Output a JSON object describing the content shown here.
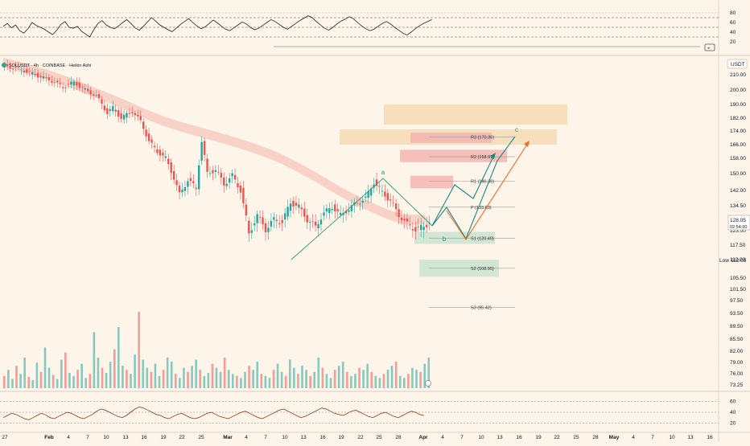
{
  "header": {
    "symbol_line": "SOLUSDT · 4h · COINBASE · Heikin Ashi"
  },
  "currency_badge": "USDT",
  "chart_data": [
    {
      "type": "line",
      "title": "",
      "note": "RSI panel (top)",
      "yticks": [
        80,
        60,
        40,
        20
      ],
      "ylim": [
        0,
        100
      ],
      "levels": [
        70,
        50,
        30
      ],
      "series": [
        {
          "values": [
            52,
            58,
            49,
            55,
            43,
            38,
            47,
            60,
            54,
            50,
            46,
            40,
            35,
            44,
            56,
            62,
            50,
            48,
            52,
            42,
            36,
            30,
            45,
            58,
            64,
            55,
            50,
            47,
            53,
            60,
            66,
            58,
            49,
            44,
            52,
            61,
            70,
            63,
            55,
            50,
            45,
            41,
            48,
            56,
            62,
            68,
            60,
            53,
            47,
            51,
            58,
            65,
            59,
            52,
            46,
            43,
            49,
            55,
            61,
            57,
            50,
            45,
            48,
            54,
            60,
            66,
            62,
            56,
            50,
            46,
            52,
            58,
            64,
            69,
            74,
            70,
            62,
            55,
            48,
            44,
            50,
            57,
            63,
            67,
            72,
            68,
            60,
            53,
            47,
            43,
            46,
            52,
            58,
            62,
            57,
            50,
            44,
            38,
            34,
            40,
            47,
            53,
            58,
            62,
            66
          ]
        }
      ]
    },
    {
      "type": "candlestick",
      "title": "",
      "note": "Main SOLUSDT 4h price panel",
      "yticks": [
        "210.00",
        "200.00",
        "190.00",
        "182.00",
        "174.00",
        "166.00",
        "158.00",
        "150.00",
        "142.00",
        "134.50",
        "128.05",
        "123.50",
        "117.50",
        "112.03",
        "105.50",
        "101.50",
        "97.50",
        "93.50",
        "89.50",
        "85.50",
        "82.00",
        "79.00",
        "76.00",
        "73.25"
      ],
      "ylim": [
        70,
        222
      ],
      "xticks": [
        "27",
        "Feb",
        "4",
        "7",
        "10",
        "13",
        "16",
        "19",
        "22",
        "25",
        "Mar",
        "4",
        "7",
        "10",
        "13",
        "16",
        "19",
        "22",
        "25",
        "28",
        "Apr",
        "4",
        "7",
        "10",
        "13",
        "16",
        "19",
        "22",
        "25",
        "28",
        "May",
        "4",
        "7",
        "10",
        "13",
        "16"
      ],
      "last_price": {
        "value": "128.05",
        "countdown": "02:54:30"
      },
      "low_label": {
        "text": "Low",
        "value": "112.03"
      },
      "price_path": [
        [
          0,
          216
        ],
        [
          6,
          214
        ],
        [
          12,
          210
        ],
        [
          18,
          206
        ],
        [
          22,
          202
        ],
        [
          26,
          205
        ],
        [
          30,
          200
        ],
        [
          34,
          196
        ],
        [
          38,
          185
        ],
        [
          40,
          188
        ],
        [
          43,
          182
        ],
        [
          47,
          186
        ],
        [
          50,
          180
        ],
        [
          53,
          168
        ],
        [
          56,
          162
        ],
        [
          59,
          158
        ],
        [
          62,
          148
        ],
        [
          64,
          140
        ],
        [
          67,
          147
        ],
        [
          70,
          143
        ],
        [
          72,
          168
        ],
        [
          74,
          150
        ],
        [
          77,
          152
        ],
        [
          80,
          145
        ],
        [
          83,
          149
        ],
        [
          86,
          142
        ],
        [
          89,
          122
        ],
        [
          92,
          130
        ],
        [
          95,
          124
        ],
        [
          98,
          128
        ],
        [
          101,
          127
        ],
        [
          104,
          136
        ],
        [
          107,
          134
        ],
        [
          110,
          128
        ],
        [
          113,
          125
        ],
        [
          116,
          131
        ],
        [
          119,
          134
        ],
        [
          122,
          130
        ],
        [
          125,
          133
        ],
        [
          128,
          136
        ],
        [
          131,
          138
        ],
        [
          134,
          146
        ],
        [
          137,
          141
        ],
        [
          140,
          137
        ],
        [
          143,
          130
        ],
        [
          146,
          126
        ],
        [
          149,
          124
        ],
        [
          152,
          125
        ],
        [
          154,
          127
        ]
      ],
      "elliott_labels": [
        "a",
        "b",
        "c"
      ],
      "pivot_levels": [
        {
          "label": "R3 (170.36)",
          "value": 170.36
        },
        {
          "label": "R2 (158.91)",
          "value": 158.91
        },
        {
          "label": "R1 (146.38)",
          "value": 146.38
        },
        {
          "label": "P (133.83)",
          "value": 133.83
        },
        {
          "label": "S1 (120.40)",
          "value": 120.4
        },
        {
          "label": "S2 (108.95)",
          "value": 108.95
        },
        {
          "label": "S3 (95.42)",
          "value": 95.42
        }
      ],
      "zones": [
        {
          "kind": "target",
          "from": 178,
          "to": 190,
          "color": "#f6dbb4"
        },
        {
          "kind": "target",
          "from": 166,
          "to": 175,
          "color": "#f6dbb4"
        },
        {
          "kind": "resistance",
          "from": 167,
          "to": 173,
          "color": "#f5b5b0"
        },
        {
          "kind": "resistance",
          "from": 156,
          "to": 163,
          "color": "#f5b5b0"
        },
        {
          "kind": "resistance",
          "from": 143,
          "to": 149,
          "color": "#f5b5b0"
        },
        {
          "kind": "support",
          "from": 118,
          "to": 123,
          "color": "#c9e3cf"
        },
        {
          "kind": "support",
          "from": 106,
          "to": 112,
          "color": "#c9e3cf"
        }
      ],
      "colors": {
        "up": "#26a69a",
        "down": "#ef5350",
        "wave": "#2e9b7b",
        "path_orange": "#f26b21",
        "path_teal": "#1b8a84"
      }
    },
    {
      "type": "bar",
      "title": "",
      "note": "Volume histogram",
      "values": [
        12,
        18,
        9,
        22,
        14,
        30,
        11,
        8,
        25,
        16,
        40,
        20,
        13,
        9,
        28,
        35,
        15,
        12,
        18,
        24,
        10,
        14,
        55,
        30,
        20,
        15,
        26,
        38,
        60,
        22,
        18,
        14,
        33,
        75,
        28,
        20,
        16,
        24,
        12,
        18,
        30,
        26,
        14,
        10,
        20,
        16,
        22,
        28,
        18,
        12,
        15,
        24,
        20,
        16,
        30,
        18,
        14,
        12,
        10,
        16,
        22,
        18,
        26,
        14,
        12,
        10,
        18,
        24,
        16,
        12,
        28,
        20,
        14,
        22,
        18,
        12,
        16,
        30,
        20,
        14,
        10,
        18,
        22,
        26,
        16,
        12,
        14,
        20,
        18,
        24,
        16,
        12,
        10,
        14,
        18,
        22,
        26,
        12,
        10,
        14,
        20,
        18,
        16,
        24,
        30
      ]
    },
    {
      "type": "line",
      "title": "",
      "note": "Oscillator panel (bottom)",
      "yticks": [
        60,
        40,
        20
      ],
      "ylim": [
        10,
        70
      ],
      "series": [
        {
          "values": [
            30,
            34,
            38,
            36,
            32,
            28,
            26,
            30,
            34,
            38,
            35,
            30,
            28,
            32,
            36,
            40,
            38,
            34,
            30,
            28,
            32,
            36,
            42,
            46,
            44,
            40,
            36,
            32,
            30,
            34,
            40,
            46,
            50,
            48,
            44,
            40,
            36,
            34,
            30,
            28,
            32,
            36,
            38,
            34,
            30,
            28,
            30,
            34,
            38,
            40,
            36,
            32,
            30,
            28,
            32,
            36,
            40,
            42,
            38,
            34,
            30,
            28,
            32,
            36,
            40,
            44,
            46,
            42,
            38,
            34,
            30,
            32,
            36,
            40,
            44,
            48,
            46,
            42,
            38,
            36,
            34,
            38,
            42,
            44,
            40,
            36,
            32,
            30,
            34,
            38,
            40,
            36,
            32,
            30,
            34,
            38,
            42,
            40,
            36,
            34
          ]
        }
      ]
    }
  ]
}
